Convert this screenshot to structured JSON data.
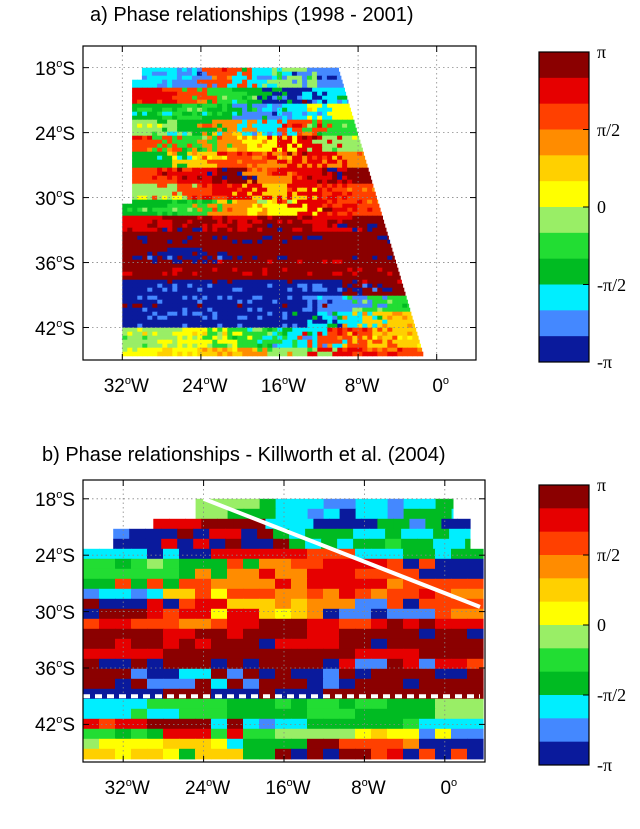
{
  "chart_data": [
    {
      "type": "heatmap",
      "title": "a) Phase relationships (1998 - 2001)",
      "xlabel": "",
      "ylabel": "",
      "x_ticks": [
        {
          "lon": -32,
          "label": "32",
          "hemi": "W"
        },
        {
          "lon": -24,
          "label": "24",
          "hemi": "W"
        },
        {
          "lon": -16,
          "label": "16",
          "hemi": "W"
        },
        {
          "lon": -8,
          "label": "8",
          "hemi": "W"
        },
        {
          "lon": 0,
          "label": "0",
          "hemi": ""
        }
      ],
      "y_ticks": [
        {
          "lat": -18,
          "label": "18",
          "hemi": "S"
        },
        {
          "lat": -24,
          "label": "24",
          "hemi": "S"
        },
        {
          "lat": -30,
          "label": "30",
          "hemi": "S"
        },
        {
          "lat": -36,
          "label": "36",
          "hemi": "S"
        },
        {
          "lat": -42,
          "label": "42",
          "hemi": "S"
        }
      ],
      "xlim": [
        -36,
        4
      ],
      "ylim": [
        -45,
        -16
      ],
      "grid": true,
      "colorbar": {
        "min": -3.1416,
        "max": 3.1416,
        "levels": 12,
        "labels": [
          "π",
          "π/2",
          "0",
          "-π/2",
          "-π"
        ],
        "colors": [
          "#8b0000",
          "#e60000",
          "#ff4000",
          "#ff8c00",
          "#ffd000",
          "#ffff00",
          "#99ee66",
          "#22dd33",
          "#00bb22",
          "#00eeff",
          "#4488ff",
          "#0a1a9c"
        ]
      },
      "bands": [
        {
          "lat": [
            -18.0,
            -19.5
          ],
          "levels": [
            9,
            10,
            2,
            9,
            6,
            10
          ]
        },
        {
          "lat": [
            -19.5,
            -21.0
          ],
          "levels": [
            1,
            2,
            7,
            8,
            11,
            9
          ]
        },
        {
          "lat": [
            -21.0,
            -22.5
          ],
          "levels": [
            8,
            7,
            8,
            10,
            9,
            5
          ]
        },
        {
          "lat": [
            -22.5,
            -24.0
          ],
          "levels": [
            6,
            8,
            3,
            9,
            2,
            7
          ]
        },
        {
          "lat": [
            -24.0,
            -25.5
          ],
          "levels": [
            2,
            7,
            3,
            5,
            1,
            6
          ]
        },
        {
          "lat": [
            -25.5,
            -27.0
          ],
          "levels": [
            8,
            4,
            2,
            3,
            1,
            3
          ]
        },
        {
          "lat": [
            -27.0,
            -28.5
          ],
          "levels": [
            2,
            1,
            0,
            3,
            1,
            0
          ]
        },
        {
          "lat": [
            -28.5,
            -30.0
          ],
          "levels": [
            6,
            2,
            1,
            4,
            1,
            2
          ]
        },
        {
          "lat": [
            -30.0,
            -31.5
          ],
          "levels": [
            8,
            7,
            3,
            5,
            1,
            2
          ]
        },
        {
          "lat": [
            -31.5,
            -33.0
          ],
          "levels": [
            1,
            0,
            1,
            0,
            1,
            0
          ]
        },
        {
          "lat": [
            -33.0,
            -34.5
          ],
          "levels": [
            0,
            0,
            0,
            0,
            0,
            0
          ]
        },
        {
          "lat": [
            -34.5,
            -36.0
          ],
          "levels": [
            0,
            11,
            0,
            0,
            0,
            0
          ]
        },
        {
          "lat": [
            -36.0,
            -37.5
          ],
          "levels": [
            0,
            0,
            0,
            0,
            0,
            0
          ]
        },
        {
          "lat": [
            -37.5,
            -39.0
          ],
          "levels": [
            11,
            11,
            11,
            11,
            11,
            0
          ]
        },
        {
          "lat": [
            -39.0,
            -40.5
          ],
          "levels": [
            11,
            11,
            11,
            11,
            10,
            7
          ]
        },
        {
          "lat": [
            -40.5,
            -42.0
          ],
          "levels": [
            11,
            11,
            11,
            11,
            9,
            4
          ]
        },
        {
          "lat": [
            -42.0,
            -43.5
          ],
          "levels": [
            6,
            5,
            7,
            9,
            2,
            4
          ]
        },
        {
          "lat": [
            -43.5,
            -45.0
          ],
          "levels": [
            5,
            4,
            3,
            6,
            1,
            2
          ]
        }
      ]
    },
    {
      "type": "heatmap",
      "title": "b) Phase relationships - Killworth et al. (2004)",
      "xlabel": "",
      "ylabel": "",
      "x_ticks": [
        {
          "lon": -32,
          "label": "32",
          "hemi": "W"
        },
        {
          "lon": -24,
          "label": "24",
          "hemi": "W"
        },
        {
          "lon": -16,
          "label": "16",
          "hemi": "W"
        },
        {
          "lon": -8,
          "label": "8",
          "hemi": "W"
        },
        {
          "lon": 0,
          "label": "0",
          "hemi": ""
        }
      ],
      "y_ticks": [
        {
          "lat": -18,
          "label": "18",
          "hemi": "S"
        },
        {
          "lat": -24,
          "label": "24",
          "hemi": "S"
        },
        {
          "lat": -30,
          "label": "30",
          "hemi": "S"
        },
        {
          "lat": -36,
          "label": "36",
          "hemi": "S"
        },
        {
          "lat": -42,
          "label": "42",
          "hemi": "S"
        }
      ],
      "xlim": [
        -36,
        4
      ],
      "ylim": [
        -46,
        -16
      ],
      "grid": true,
      "colorbar": {
        "min": -3.1416,
        "max": 3.1416,
        "levels": 12,
        "labels": [
          "π",
          "π/2",
          "0",
          "-π/2",
          "-π"
        ],
        "colors": [
          "#8b0000",
          "#e60000",
          "#ff4000",
          "#ff8c00",
          "#ffd000",
          "#ffff00",
          "#99ee66",
          "#22dd33",
          "#00bb22",
          "#00eeff",
          "#4488ff",
          "#0a1a9c"
        ]
      },
      "bands": [
        {
          "lat": [
            -18.0,
            -19.5
          ],
          "levels": [
            6,
            8,
            9,
            10,
            9,
            8
          ]
        },
        {
          "lat": [
            -19.5,
            -21.0
          ],
          "levels": [
            1,
            0,
            9,
            11,
            8,
            10
          ]
        },
        {
          "lat": [
            -21.0,
            -22.5
          ],
          "levels": [
            11,
            1,
            0,
            9,
            8,
            9
          ]
        },
        {
          "lat": [
            -22.5,
            -24.0
          ],
          "levels": [
            9,
            11,
            1,
            2,
            9,
            8
          ]
        },
        {
          "lat": [
            -24.0,
            -25.5
          ],
          "levels": [
            7,
            8,
            3,
            1,
            2,
            11
          ]
        },
        {
          "lat": [
            -25.5,
            -27.0
          ],
          "levels": [
            8,
            2,
            3,
            1,
            3,
            2
          ]
        },
        {
          "lat": [
            -27.0,
            -28.5
          ],
          "levels": [
            9,
            4,
            2,
            3,
            1,
            2
          ]
        },
        {
          "lat": [
            -28.5,
            -30.0
          ],
          "levels": [
            11,
            1,
            4,
            3,
            10,
            2
          ]
        },
        {
          "lat": [
            -30.0,
            -31.5
          ],
          "levels": [
            1,
            2,
            0,
            1,
            0,
            1
          ]
        },
        {
          "lat": [
            -31.5,
            -33.0
          ],
          "levels": [
            0,
            1,
            0,
            1,
            0,
            0
          ]
        },
        {
          "lat": [
            -33.0,
            -34.5
          ],
          "levels": [
            1,
            0,
            0,
            0,
            1,
            0
          ]
        },
        {
          "lat": [
            -34.5,
            -36.0
          ],
          "levels": [
            11,
            0,
            11,
            0,
            10,
            1
          ]
        },
        {
          "lat": [
            -36.0,
            -37.5
          ],
          "levels": [
            0,
            10,
            0,
            11,
            0,
            0
          ]
        },
        {
          "lat": [
            -37.5,
            -39.0
          ],
          "levels": [
            11,
            0,
            11,
            0,
            0,
            0
          ]
        },
        {
          "lat": [
            -39.0,
            -40.5
          ],
          "levels": [
            9,
            7,
            8,
            7,
            8,
            6
          ]
        },
        {
          "lat": [
            -40.5,
            -42.0
          ],
          "levels": [
            1,
            0,
            9,
            8,
            7,
            9
          ]
        },
        {
          "lat": [
            -42.0,
            -43.5
          ],
          "levels": [
            8,
            1,
            7,
            6,
            5,
            10
          ]
        },
        {
          "lat": [
            -43.5,
            -45.0
          ],
          "levels": [
            5,
            4,
            8,
            0,
            2,
            11
          ]
        }
      ],
      "annotations": [
        {
          "type": "solid-line",
          "color": "#ffffff",
          "from": [
            -24,
            -18
          ],
          "to": [
            3.5,
            -29.5
          ]
        },
        {
          "type": "dashed-line",
          "color": "#ffffff",
          "from": [
            -36,
            -39
          ],
          "to": [
            3.5,
            -39
          ]
        }
      ]
    }
  ]
}
